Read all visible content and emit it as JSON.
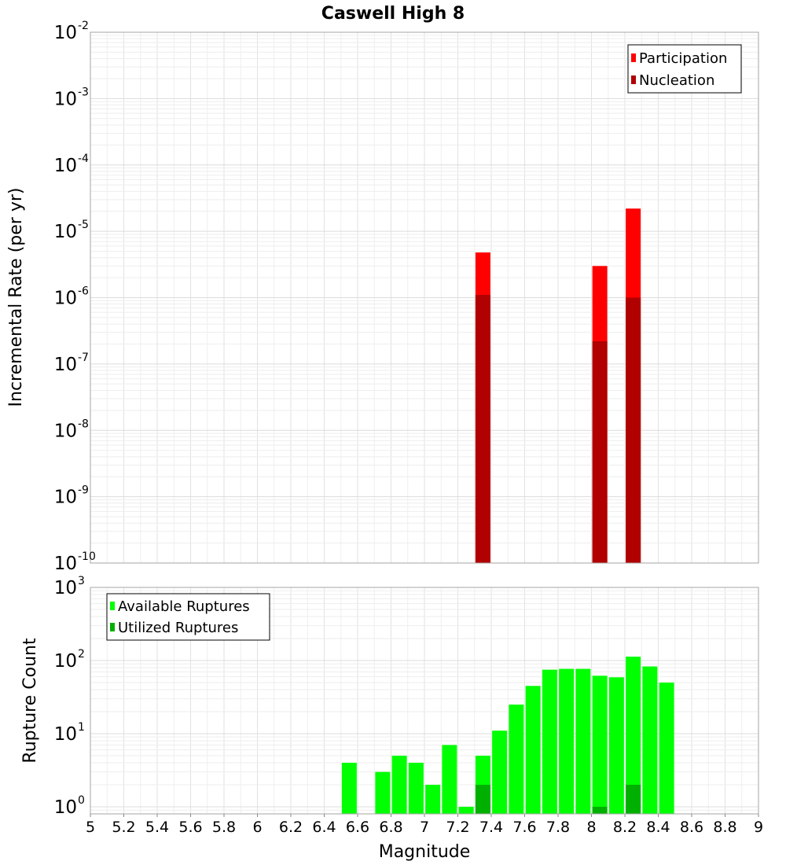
{
  "chart_data": [
    {
      "type": "bar",
      "title": "Caswell High 8",
      "xlabel": "",
      "ylabel": "Incremental Rate (per yr)",
      "yscale": "log",
      "ylim": [
        1e-10,
        0.01
      ],
      "xlim": [
        5,
        9
      ],
      "y_ticks": [
        {
          "base": "10",
          "exp": "-10"
        },
        {
          "base": "10",
          "exp": "-9"
        },
        {
          "base": "10",
          "exp": "-8"
        },
        {
          "base": "10",
          "exp": "-7"
        },
        {
          "base": "10",
          "exp": "-6"
        },
        {
          "base": "10",
          "exp": "-5"
        },
        {
          "base": "10",
          "exp": "-4"
        },
        {
          "base": "10",
          "exp": "-3"
        },
        {
          "base": "10",
          "exp": "-2"
        }
      ],
      "grid": true,
      "legend_position": "top-right",
      "series": [
        {
          "name": "Participation",
          "color": "#ff0000",
          "points": [
            {
              "x": 7.35,
              "y": 4.8e-06
            },
            {
              "x": 8.05,
              "y": 3e-06
            },
            {
              "x": 8.25,
              "y": 2.2e-05
            }
          ]
        },
        {
          "name": "Nucleation",
          "color": "#b00000",
          "points": [
            {
              "x": 7.35,
              "y": 1.1e-06
            },
            {
              "x": 8.05,
              "y": 2.2e-07
            },
            {
              "x": 8.25,
              "y": 1e-06
            }
          ]
        }
      ]
    },
    {
      "type": "bar",
      "title": "",
      "xlabel": "Magnitude",
      "ylabel": "Rupture Count",
      "yscale": "log",
      "ylim": [
        0.8,
        1000
      ],
      "xlim": [
        5,
        9
      ],
      "y_ticks": [
        {
          "base": "10",
          "exp": "0"
        },
        {
          "base": "10",
          "exp": "1"
        },
        {
          "base": "10",
          "exp": "2"
        },
        {
          "base": "10",
          "exp": "3"
        }
      ],
      "x_ticks": [
        "5",
        "5.2",
        "5.4",
        "5.6",
        "5.8",
        "6",
        "6.2",
        "6.4",
        "6.6",
        "6.8",
        "7",
        "7.2",
        "7.4",
        "7.6",
        "7.8",
        "8",
        "8.2",
        "8.4",
        "8.6",
        "8.8",
        "9"
      ],
      "grid": true,
      "legend_position": "top-left",
      "series": [
        {
          "name": "Available Ruptures",
          "color": "#00ff00",
          "points": [
            {
              "x": 6.55,
              "y": 4
            },
            {
              "x": 6.75,
              "y": 3
            },
            {
              "x": 6.85,
              "y": 5
            },
            {
              "x": 6.95,
              "y": 4
            },
            {
              "x": 7.05,
              "y": 2
            },
            {
              "x": 7.15,
              "y": 7
            },
            {
              "x": 7.25,
              "y": 1
            },
            {
              "x": 7.35,
              "y": 5
            },
            {
              "x": 7.45,
              "y": 11
            },
            {
              "x": 7.55,
              "y": 25
            },
            {
              "x": 7.65,
              "y": 45
            },
            {
              "x": 7.75,
              "y": 75
            },
            {
              "x": 7.85,
              "y": 77
            },
            {
              "x": 7.95,
              "y": 77
            },
            {
              "x": 8.05,
              "y": 62
            },
            {
              "x": 8.15,
              "y": 59
            },
            {
              "x": 8.25,
              "y": 113
            },
            {
              "x": 8.35,
              "y": 83
            },
            {
              "x": 8.45,
              "y": 50
            }
          ]
        },
        {
          "name": "Utilized Ruptures",
          "color": "#00b000",
          "points": [
            {
              "x": 7.35,
              "y": 2
            },
            {
              "x": 8.05,
              "y": 1
            },
            {
              "x": 8.25,
              "y": 2
            }
          ]
        }
      ]
    }
  ]
}
